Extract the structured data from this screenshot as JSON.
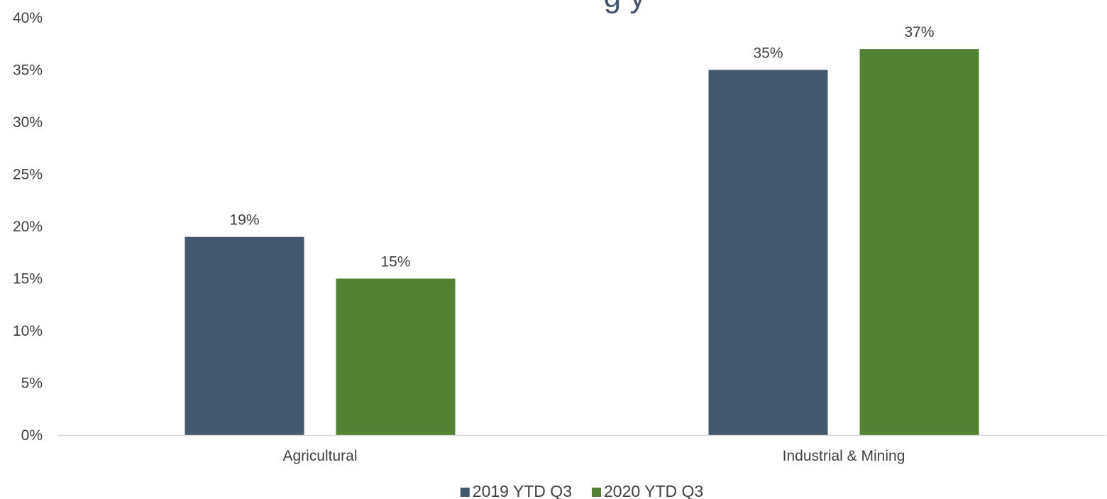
{
  "chart_data": {
    "type": "bar",
    "title": "g y",
    "categories": [
      "Agricultural",
      "Industrial & Mining"
    ],
    "series": [
      {
        "name": "2019 YTD Q3",
        "values": [
          19,
          35
        ],
        "labels": [
          "19%",
          "35%"
        ],
        "color": "#44586d"
      },
      {
        "name": "2020 YTD Q3",
        "values": [
          15,
          37
        ],
        "labels": [
          "15%",
          "37%"
        ],
        "color": "#548235"
      }
    ],
    "ylim": [
      0,
      40
    ],
    "yticks": [
      0,
      5,
      10,
      15,
      20,
      25,
      30,
      35,
      40
    ],
    "ytick_labels": [
      "0%",
      "5%",
      "10%",
      "15%",
      "20%",
      "25%",
      "30%",
      "35%",
      "40%"
    ],
    "grid": false,
    "legend_position": "bottom"
  }
}
